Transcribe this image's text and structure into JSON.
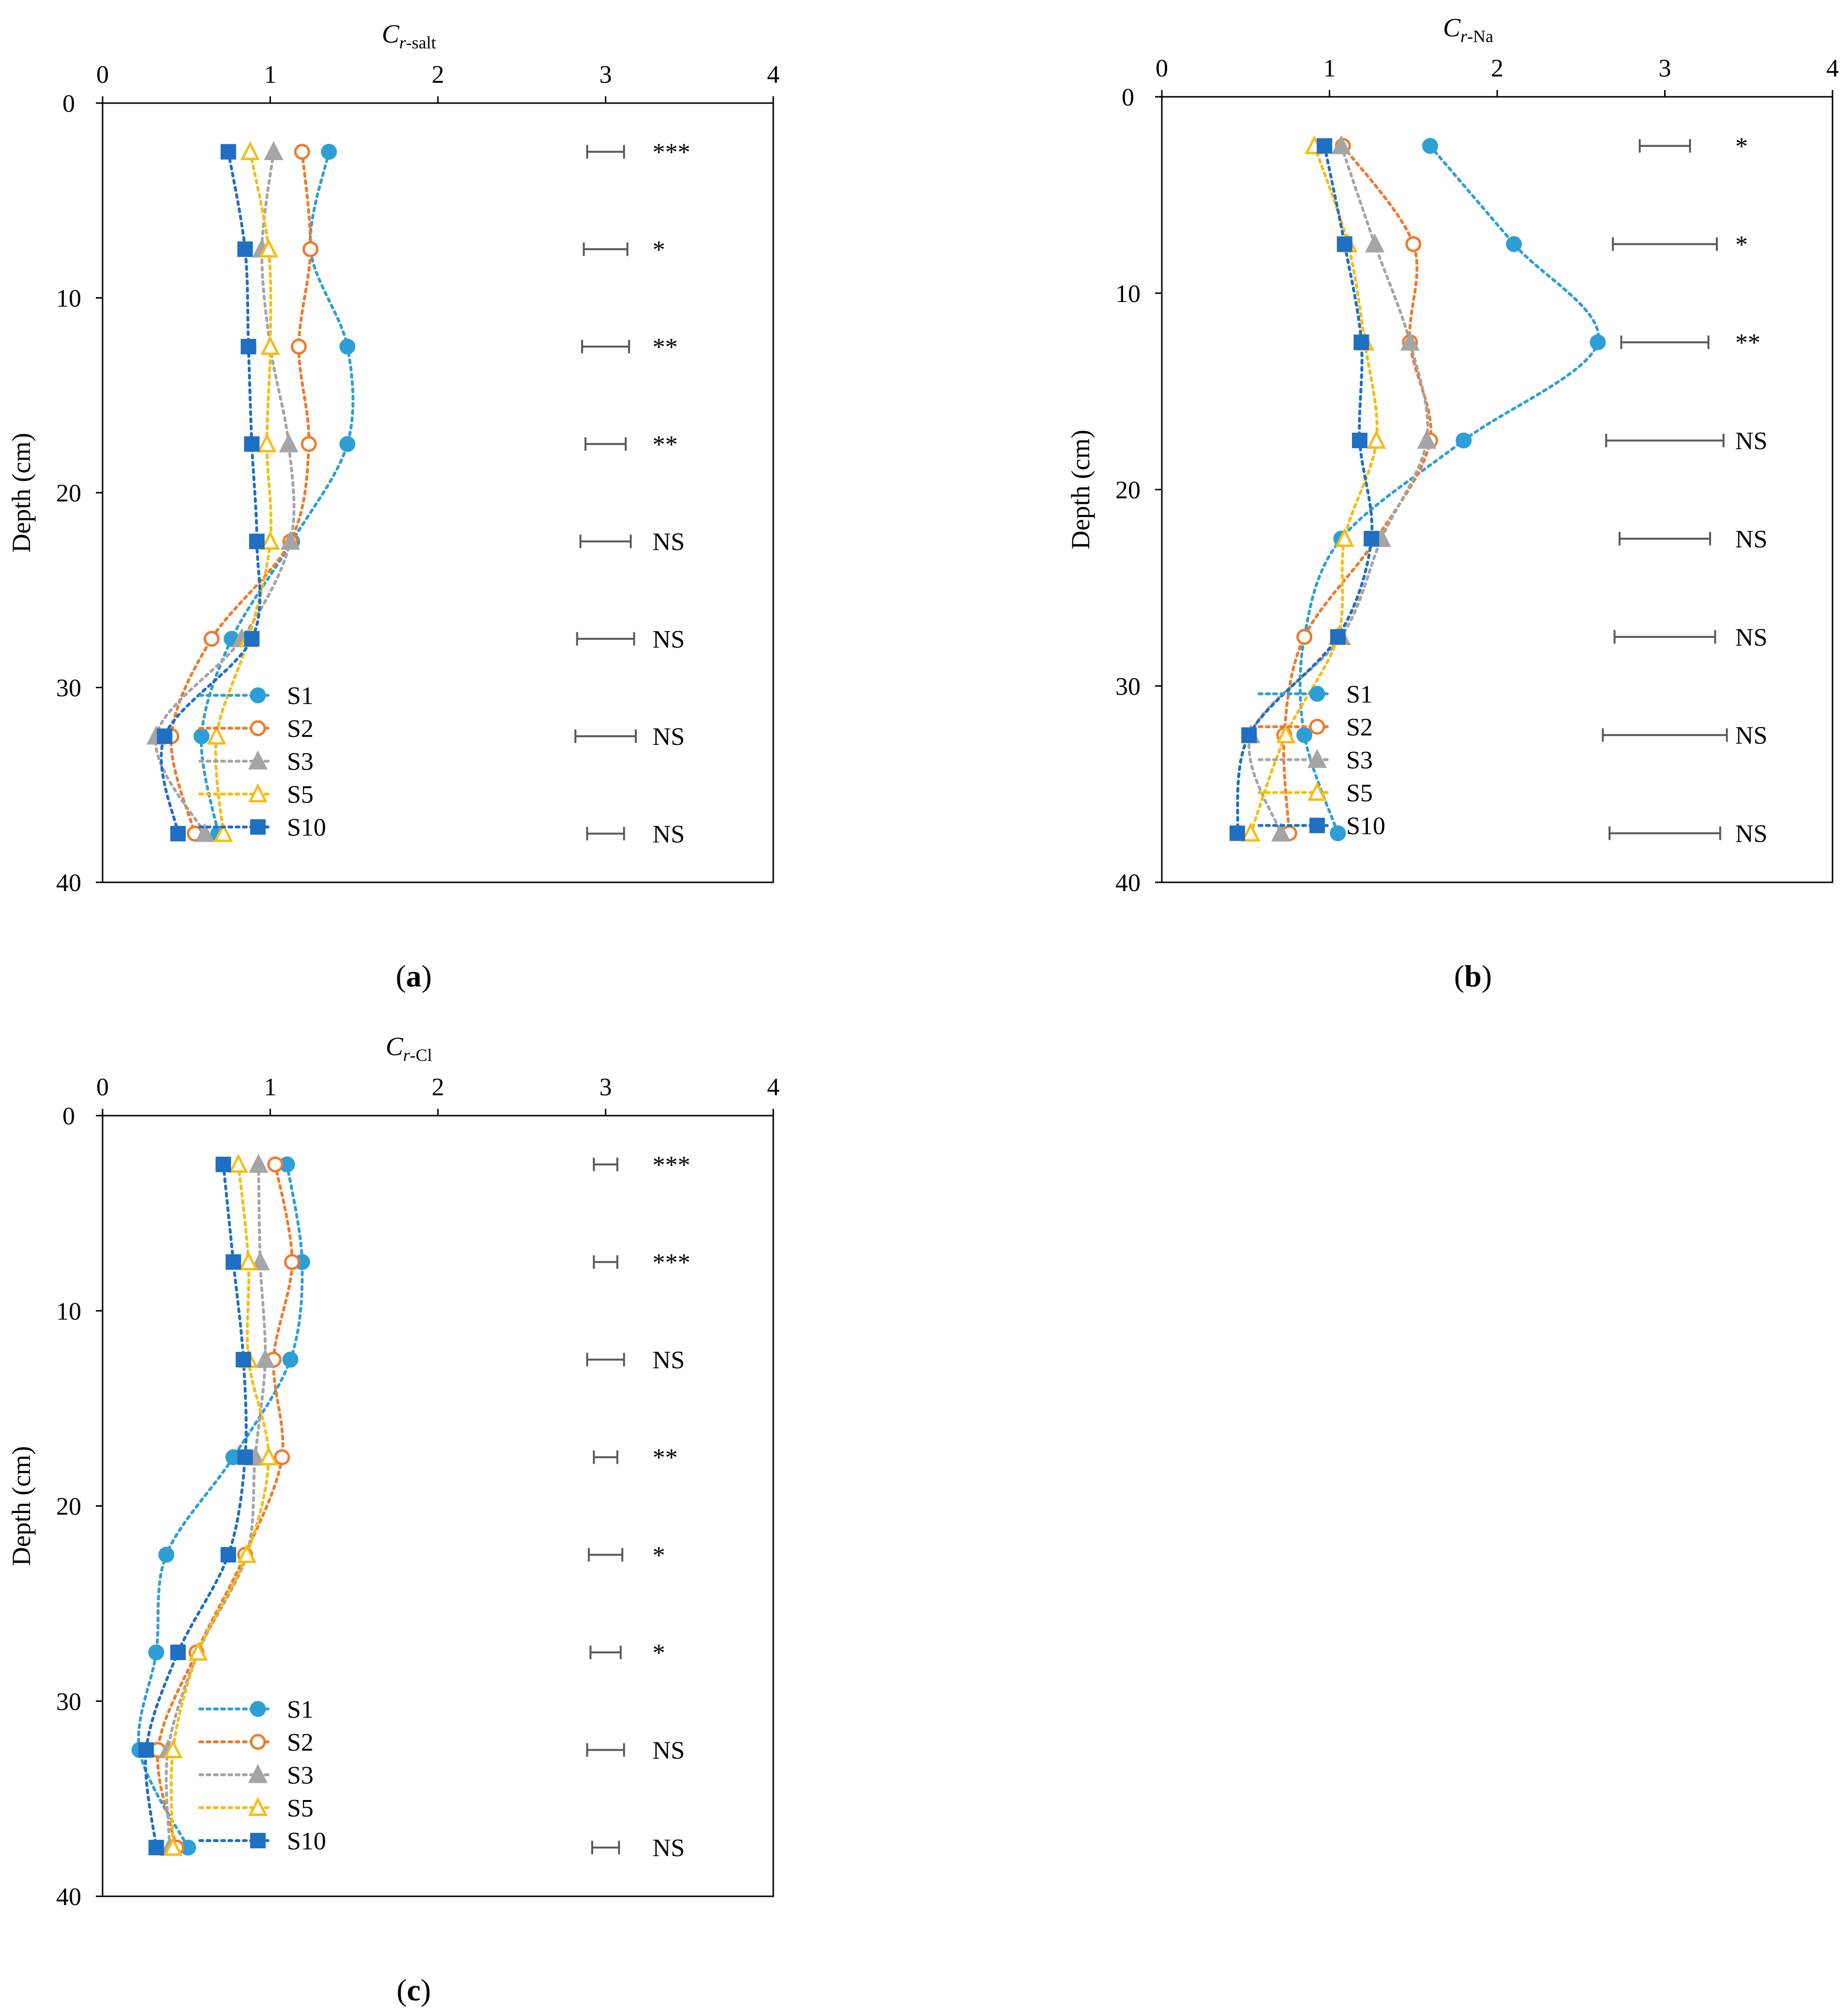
{
  "chart_data": [
    {
      "type": "line",
      "panel_label": "a",
      "xlabel": {
        "main": "C",
        "sub": "r-salt"
      },
      "ylabel": "Depth (cm)",
      "xlim": [
        0,
        4
      ],
      "ylim": [
        0,
        40
      ],
      "xticks": [
        "0",
        "1",
        "2",
        "3",
        "4"
      ],
      "yticks": [
        "0",
        "10",
        "20",
        "30",
        "40"
      ],
      "depths": [
        2.5,
        7.5,
        12.5,
        17.5,
        22.5,
        27.5,
        32.5,
        37.5
      ],
      "series": [
        {
          "name": "S1",
          "values": [
            1.35,
            1.24,
            1.46,
            1.46,
            1.13,
            0.77,
            0.59,
            0.69
          ]
        },
        {
          "name": "S2",
          "values": [
            1.19,
            1.24,
            1.17,
            1.23,
            1.12,
            0.65,
            0.41,
            0.55
          ]
        },
        {
          "name": "S3",
          "values": [
            1.02,
            0.95,
            1.0,
            1.11,
            1.12,
            0.83,
            0.32,
            0.61
          ]
        },
        {
          "name": "S5",
          "values": [
            0.88,
            0.99,
            1.0,
            0.98,
            1.0,
            0.87,
            0.68,
            0.72
          ]
        },
        {
          "name": "S10",
          "values": [
            0.75,
            0.85,
            0.87,
            0.89,
            0.92,
            0.89,
            0.37,
            0.45
          ]
        }
      ],
      "sig_bars": [
        {
          "center": 3.0,
          "half": 0.11,
          "label": "***"
        },
        {
          "center": 3.0,
          "half": 0.13,
          "label": "*"
        },
        {
          "center": 3.0,
          "half": 0.14,
          "label": "**"
        },
        {
          "center": 3.0,
          "half": 0.12,
          "label": "**"
        },
        {
          "center": 3.0,
          "half": 0.15,
          "label": "NS"
        },
        {
          "center": 3.0,
          "half": 0.17,
          "label": "NS"
        },
        {
          "center": 3.0,
          "half": 0.18,
          "label": "NS"
        },
        {
          "center": 3.0,
          "half": 0.11,
          "label": "NS"
        }
      ],
      "legend_position": "bottom-center"
    },
    {
      "type": "line",
      "panel_label": "b",
      "xlabel": {
        "main": "C",
        "sub": "r-Na"
      },
      "ylabel": "Depth (cm)",
      "xlim": [
        0,
        4
      ],
      "ylim": [
        0,
        40
      ],
      "xticks": [
        "0",
        "1",
        "2",
        "3",
        "4"
      ],
      "yticks": [
        "0",
        "10",
        "20",
        "30",
        "40"
      ],
      "depths": [
        2.5,
        7.5,
        12.5,
        17.5,
        22.5,
        27.5,
        32.5,
        37.5
      ],
      "series": [
        {
          "name": "S1",
          "values": [
            1.6,
            2.1,
            2.6,
            1.8,
            1.07,
            0.85,
            0.85,
            1.05
          ]
        },
        {
          "name": "S2",
          "values": [
            1.08,
            1.5,
            1.48,
            1.6,
            1.28,
            0.85,
            0.73,
            0.76
          ]
        },
        {
          "name": "S3",
          "values": [
            1.07,
            1.27,
            1.48,
            1.58,
            1.31,
            1.07,
            0.53,
            0.71
          ]
        },
        {
          "name": "S5",
          "values": [
            0.91,
            1.11,
            1.21,
            1.28,
            1.09,
            1.05,
            0.74,
            0.53
          ]
        },
        {
          "name": "S10",
          "values": [
            0.97,
            1.09,
            1.19,
            1.18,
            1.25,
            1.05,
            0.52,
            0.45
          ]
        }
      ],
      "sig_bars": [
        {
          "center": 3.0,
          "half": 0.15,
          "label": "*"
        },
        {
          "center": 3.0,
          "half": 0.31,
          "label": "*"
        },
        {
          "center": 3.0,
          "half": 0.26,
          "label": "**"
        },
        {
          "center": 3.0,
          "half": 0.35,
          "label": "NS"
        },
        {
          "center": 3.0,
          "half": 0.27,
          "label": "NS"
        },
        {
          "center": 3.0,
          "half": 0.3,
          "label": "NS"
        },
        {
          "center": 3.0,
          "half": 0.37,
          "label": "NS"
        },
        {
          "center": 3.0,
          "half": 0.33,
          "label": "NS"
        }
      ],
      "legend_position": "bottom-center"
    },
    {
      "type": "line",
      "panel_label": "c",
      "xlabel": {
        "main": "C",
        "sub": "r-Cl"
      },
      "ylabel": "Depth (cm)",
      "xlim": [
        0,
        4
      ],
      "ylim": [
        0,
        40
      ],
      "xticks": [
        "0",
        "1",
        "2",
        "3",
        "4"
      ],
      "yticks": [
        "0",
        "10",
        "20",
        "30",
        "40"
      ],
      "depths": [
        2.5,
        7.5,
        12.5,
        17.5,
        22.5,
        27.5,
        32.5,
        37.5
      ],
      "series": [
        {
          "name": "S1",
          "values": [
            1.1,
            1.19,
            1.12,
            0.78,
            0.38,
            0.32,
            0.22,
            0.51
          ]
        },
        {
          "name": "S2",
          "values": [
            1.03,
            1.13,
            1.02,
            1.07,
            0.85,
            0.56,
            0.33,
            0.44
          ]
        },
        {
          "name": "S3",
          "values": [
            0.93,
            0.94,
            0.97,
            0.91,
            0.86,
            0.57,
            0.39,
            0.4
          ]
        },
        {
          "name": "S5",
          "values": [
            0.81,
            0.87,
            0.87,
            0.99,
            0.86,
            0.57,
            0.42,
            0.42
          ]
        },
        {
          "name": "S10",
          "values": [
            0.72,
            0.78,
            0.84,
            0.85,
            0.75,
            0.45,
            0.26,
            0.32
          ]
        }
      ],
      "sig_bars": [
        {
          "center": 3.0,
          "half": 0.07,
          "label": "***"
        },
        {
          "center": 3.0,
          "half": 0.07,
          "label": "***"
        },
        {
          "center": 3.0,
          "half": 0.11,
          "label": "NS"
        },
        {
          "center": 3.0,
          "half": 0.07,
          "label": "**"
        },
        {
          "center": 3.0,
          "half": 0.1,
          "label": "*"
        },
        {
          "center": 3.0,
          "half": 0.09,
          "label": "*"
        },
        {
          "center": 3.0,
          "half": 0.11,
          "label": "NS"
        },
        {
          "center": 3.0,
          "half": 0.08,
          "label": "NS"
        }
      ],
      "legend_position": "bottom-center"
    }
  ],
  "series_styles": [
    {
      "name": "S1",
      "color": "#2e9fd6",
      "marker": "circle",
      "filled": true
    },
    {
      "name": "S2",
      "color": "#f07a2c",
      "marker": "circle",
      "filled": false
    },
    {
      "name": "S3",
      "color": "#a5a5a5",
      "marker": "triangle",
      "filled": true
    },
    {
      "name": "S5",
      "color": "#f5bd16",
      "marker": "triangle",
      "filled": false
    },
    {
      "name": "S10",
      "color": "#1f6fc2",
      "marker": "square",
      "filled": true
    }
  ],
  "sig_bar_color": "#595959"
}
